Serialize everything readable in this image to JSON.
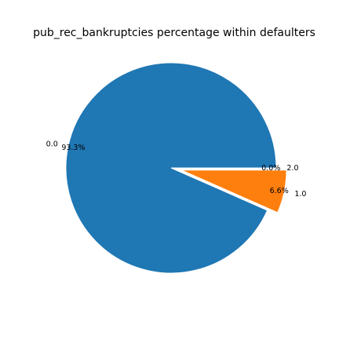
{
  "chart_data": {
    "type": "pie",
    "title": "pub_rec_bankruptcies percentage within defaulters",
    "categories": [
      "0.0",
      "1.0",
      "2.0"
    ],
    "values": [
      93.3,
      6.6,
      0.0
    ],
    "pct_labels": [
      "93.3%",
      "6.6%",
      "0.0%"
    ],
    "colors": [
      "#1f77b4",
      "#ff7f0e",
      "#2ca02c"
    ],
    "explode": [
      0,
      0.1,
      0
    ],
    "legend": "none"
  }
}
